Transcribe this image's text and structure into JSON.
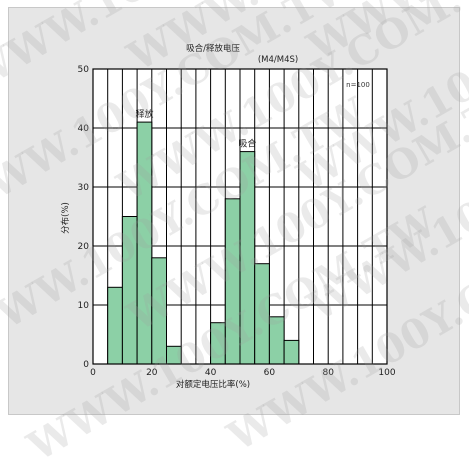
{
  "watermark": "WWW.100Y.COM.TW",
  "chart_data": {
    "type": "bar",
    "title": "吸合/释放电压",
    "subtitle": "(M4/M4S)",
    "xlabel": "对额定电压比率(%)",
    "ylabel": "分布(%)",
    "xlim": [
      0,
      100
    ],
    "ylim": [
      0,
      50
    ],
    "xticks": [
      "0",
      "20",
      "40",
      "60",
      "80",
      "100"
    ],
    "yticks": [
      "0",
      "10",
      "20",
      "30",
      "40",
      "50"
    ],
    "grid": true,
    "annotation_n": "n=100",
    "bar_color": "#8cd0a6",
    "groups": [
      {
        "name": "释放",
        "bins": [
          {
            "x0": 5,
            "x1": 10,
            "value": 13
          },
          {
            "x0": 10,
            "x1": 15,
            "value": 25
          },
          {
            "x0": 15,
            "x1": 20,
            "value": 41
          },
          {
            "x0": 20,
            "x1": 25,
            "value": 18
          },
          {
            "x0": 25,
            "x1": 30,
            "value": 3
          }
        ]
      },
      {
        "name": "吸合",
        "bins": [
          {
            "x0": 40,
            "x1": 45,
            "value": 7
          },
          {
            "x0": 45,
            "x1": 50,
            "value": 28
          },
          {
            "x0": 50,
            "x1": 55,
            "value": 36
          },
          {
            "x0": 55,
            "x1": 60,
            "value": 17
          },
          {
            "x0": 60,
            "x1": 65,
            "value": 8
          },
          {
            "x0": 65,
            "x1": 70,
            "value": 4
          }
        ]
      }
    ]
  }
}
